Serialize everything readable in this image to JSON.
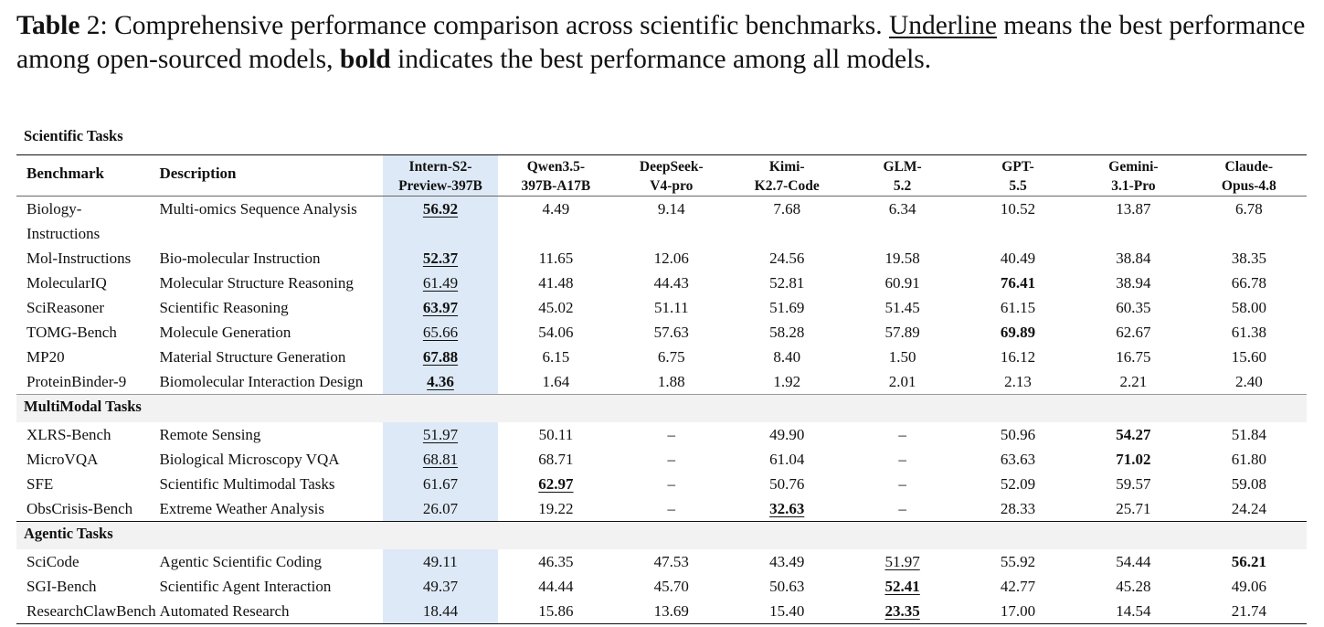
{
  "caption": {
    "label": "Table",
    "number": "2:",
    "text_a": "Comprehensive performance comparison across scientific benchmarks.",
    "underline_word": "Underline",
    "text_b": "means the best performance among open-sourced models,",
    "bold_word": "bold",
    "text_c": "indicates the best performance among all models."
  },
  "headers": {
    "benchmark": "Benchmark",
    "description": "Description",
    "models": [
      {
        "l1": "Intern-S2-",
        "l2": "Preview-397B"
      },
      {
        "l1": "Qwen3.5-",
        "l2": "397B-A17B"
      },
      {
        "l1": "DeepSeek-",
        "l2": "V4-pro"
      },
      {
        "l1": "Kimi-",
        "l2": "K2.7-Code"
      },
      {
        "l1": "GLM-",
        "l2": "5.2"
      },
      {
        "l1": "GPT-",
        "l2": "5.5"
      },
      {
        "l1": "Gemini-",
        "l2": "3.1-Pro"
      },
      {
        "l1": "Claude-",
        "l2": "Opus-4.8"
      }
    ]
  },
  "sections": [
    {
      "title": "Scientific Tasks",
      "rows": [
        {
          "bench": [
            "Biology-",
            "Instructions"
          ],
          "desc": "Multi-omics Sequence Analysis",
          "vals": [
            "56.92",
            "4.49",
            "9.14",
            "7.68",
            "6.34",
            "10.52",
            "13.87",
            "6.78"
          ],
          "fmt": [
            "bu",
            "",
            "",
            "",
            "",
            "",
            "",
            ""
          ]
        },
        {
          "bench": [
            "Mol-Instructions"
          ],
          "desc": "Bio-molecular Instruction",
          "vals": [
            "52.37",
            "11.65",
            "12.06",
            "24.56",
            "19.58",
            "40.49",
            "38.84",
            "38.35"
          ],
          "fmt": [
            "bu",
            "",
            "",
            "",
            "",
            "",
            "",
            ""
          ]
        },
        {
          "bench": [
            "MolecularIQ"
          ],
          "desc": "Molecular Structure Reasoning",
          "vals": [
            "61.49",
            "41.48",
            "44.43",
            "52.81",
            "60.91",
            "76.41",
            "38.94",
            "66.78"
          ],
          "fmt": [
            "u",
            "",
            "",
            "",
            "",
            "b",
            "",
            ""
          ]
        },
        {
          "bench": [
            "SciReasoner"
          ],
          "desc": "Scientific Reasoning",
          "vals": [
            "63.97",
            "45.02",
            "51.11",
            "51.69",
            "51.45",
            "61.15",
            "60.35",
            "58.00"
          ],
          "fmt": [
            "bu",
            "",
            "",
            "",
            "",
            "",
            "",
            ""
          ]
        },
        {
          "bench": [
            "TOMG-Bench"
          ],
          "desc": "Molecule Generation",
          "vals": [
            "65.66",
            "54.06",
            "57.63",
            "58.28",
            "57.89",
            "69.89",
            "62.67",
            "61.38"
          ],
          "fmt": [
            "u",
            "",
            "",
            "",
            "",
            "b",
            "",
            ""
          ]
        },
        {
          "bench": [
            "MP20"
          ],
          "desc": "Material Structure Generation",
          "vals": [
            "67.88",
            "6.15",
            "6.75",
            "8.40",
            "1.50",
            "16.12",
            "16.75",
            "15.60"
          ],
          "fmt": [
            "bu",
            "",
            "",
            "",
            "",
            "",
            "",
            ""
          ]
        },
        {
          "bench": [
            "ProteinBinder-9"
          ],
          "desc": "Biomolecular Interaction Design",
          "vals": [
            "4.36",
            "1.64",
            "1.88",
            "1.92",
            "2.01",
            "2.13",
            "2.21",
            "2.40"
          ],
          "fmt": [
            "bu",
            "",
            "",
            "",
            "",
            "",
            "",
            ""
          ]
        }
      ]
    },
    {
      "title": "MultiModal Tasks",
      "rows": [
        {
          "bench": [
            "XLRS-Bench"
          ],
          "desc": "Remote Sensing",
          "vals": [
            "51.97",
            "50.11",
            "–",
            "49.90",
            "–",
            "50.96",
            "54.27",
            "51.84"
          ],
          "fmt": [
            "u",
            "",
            "",
            "",
            "",
            "",
            "b",
            ""
          ]
        },
        {
          "bench": [
            "MicroVQA"
          ],
          "desc": "Biological Microscopy VQA",
          "vals": [
            "68.81",
            "68.71",
            "–",
            "61.04",
            "–",
            "63.63",
            "71.02",
            "61.80"
          ],
          "fmt": [
            "u",
            "",
            "",
            "",
            "",
            "",
            "b",
            ""
          ]
        },
        {
          "bench": [
            "SFE"
          ],
          "desc": "Scientific Multimodal Tasks",
          "vals": [
            "61.67",
            "62.97",
            "–",
            "50.76",
            "–",
            "52.09",
            "59.57",
            "59.08"
          ],
          "fmt": [
            "",
            "bu",
            "",
            "",
            "",
            "",
            "",
            ""
          ]
        },
        {
          "bench": [
            "ObsCrisis-Bench"
          ],
          "desc": "Extreme Weather Analysis",
          "vals": [
            "26.07",
            "19.22",
            "–",
            "32.63",
            "–",
            "28.33",
            "25.71",
            "24.24"
          ],
          "fmt": [
            "",
            "",
            "",
            "bu",
            "",
            "",
            "",
            ""
          ]
        }
      ]
    },
    {
      "title": "Agentic Tasks",
      "rows": [
        {
          "bench": [
            "SciCode"
          ],
          "desc": "Agentic Scientific Coding",
          "vals": [
            "49.11",
            "46.35",
            "47.53",
            "43.49",
            "51.97",
            "55.92",
            "54.44",
            "56.21"
          ],
          "fmt": [
            "",
            "",
            "",
            "",
            "u",
            "",
            "",
            "b"
          ]
        },
        {
          "bench": [
            "SGI-Bench"
          ],
          "desc": "Scientific Agent Interaction",
          "vals": [
            "49.37",
            "44.44",
            "45.70",
            "50.63",
            "52.41",
            "42.77",
            "45.28",
            "49.06"
          ],
          "fmt": [
            "",
            "",
            "",
            "",
            "bu",
            "",
            "",
            ""
          ]
        },
        {
          "bench": [
            "ResearchClawBench"
          ],
          "desc": "Automated Research",
          "vals": [
            "18.44",
            "15.86",
            "13.69",
            "15.40",
            "23.35",
            "17.00",
            "14.54",
            "21.74"
          ],
          "fmt": [
            "",
            "",
            "",
            "",
            "bu",
            "",
            "",
            ""
          ]
        }
      ]
    }
  ]
}
